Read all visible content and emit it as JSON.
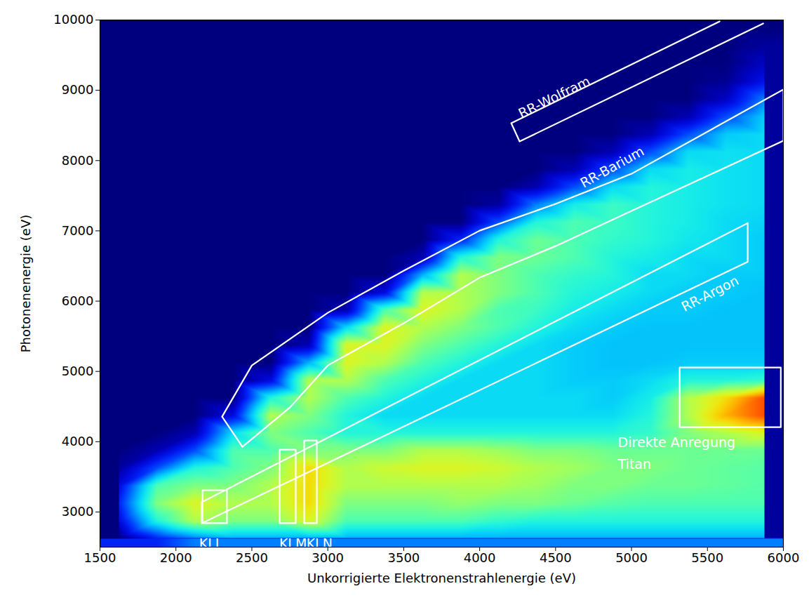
{
  "chart_data": {
    "type": "heatmap",
    "xlabel": "Unkorrigierte Elektronenstrahlenergie (eV)",
    "ylabel": "Photonenenergie (eV)",
    "xlim": [
      1500,
      6000
    ],
    "xticks": [
      1500,
      2000,
      2500,
      3000,
      3500,
      4000,
      4500,
      5000,
      5500,
      6000
    ],
    "ylim": [
      2500,
      10000
    ],
    "yticks": [
      3000,
      4000,
      5000,
      6000,
      7000,
      8000,
      9000,
      10000
    ],
    "x_bins": [
      1500,
      1750,
      2000,
      2250,
      2500,
      2750,
      3000,
      3250,
      3500,
      3750,
      4000,
      4250,
      4500,
      4750,
      5000,
      5250,
      5500,
      5750,
      6000
    ],
    "y_bins": [
      2500,
      2750,
      3000,
      3250,
      3500,
      3750,
      4000,
      4250,
      4500,
      4750,
      5000,
      5250,
      5500,
      5750,
      6000,
      6250,
      6500,
      6750,
      7000,
      7250,
      7500,
      7750,
      8000,
      8250,
      8500,
      8750,
      9000,
      9250,
      9500,
      9750,
      10000
    ],
    "zlim": [
      0,
      10
    ],
    "z": [
      [
        0,
        1,
        1.5,
        1,
        0.3,
        0,
        0,
        0,
        0,
        0,
        0,
        0,
        0,
        0,
        0,
        0,
        0,
        0,
        0,
        0,
        0,
        0,
        0,
        0,
        0,
        0,
        0,
        0,
        0,
        0
      ],
      [
        1.5,
        4,
        5,
        4.5,
        2,
        0.5,
        0,
        0,
        0,
        0,
        0,
        0,
        0,
        0,
        0,
        0,
        0,
        0,
        0,
        0,
        0,
        0,
        0,
        0,
        0,
        0,
        0,
        0,
        0,
        0
      ],
      [
        2.5,
        5.5,
        6,
        5,
        4,
        2,
        0.5,
        0,
        0,
        0,
        0,
        0,
        0,
        0,
        0,
        0,
        0,
        0,
        0,
        0,
        0,
        0,
        0,
        0,
        0,
        0,
        0,
        0,
        0,
        0
      ],
      [
        3,
        5,
        5.5,
        5,
        4.5,
        4.5,
        3.5,
        1,
        0,
        0,
        0,
        0,
        0,
        0,
        0,
        0,
        0,
        0,
        0,
        0,
        0,
        0,
        0,
        0,
        0,
        0,
        0,
        0,
        0,
        0
      ],
      [
        3,
        5,
        5.5,
        5.5,
        5,
        4.5,
        5,
        5.5,
        4,
        1,
        0,
        0,
        0,
        0,
        0,
        0,
        0,
        0,
        0,
        0,
        0,
        0,
        0,
        0,
        0,
        0,
        0,
        0,
        0,
        0
      ],
      [
        3,
        6,
        6.5,
        6.5,
        6.5,
        5,
        4.5,
        5,
        5.5,
        5.5,
        3,
        0.5,
        0,
        0,
        0,
        0,
        0,
        0,
        0,
        0,
        0,
        0,
        0,
        0,
        0,
        0,
        0,
        0,
        0,
        0
      ],
      [
        3,
        4.5,
        5,
        5.5,
        5.5,
        5,
        4,
        4,
        4.5,
        5.5,
        6,
        6,
        3.5,
        0.5,
        0,
        0,
        0,
        0,
        0,
        0,
        0,
        0,
        0,
        0,
        0,
        0,
        0,
        0,
        0,
        0
      ],
      [
        3,
        4.5,
        5,
        5.5,
        5.8,
        5,
        4,
        3.5,
        4,
        4.5,
        5.5,
        6,
        6,
        4.5,
        1,
        0,
        0,
        0,
        0,
        0,
        0,
        0,
        0,
        0,
        0,
        0,
        0,
        0,
        0,
        0
      ],
      [
        3,
        4.5,
        5,
        5.5,
        6,
        5.5,
        4,
        3.5,
        3.5,
        4,
        4.5,
        5,
        5.5,
        6,
        5.5,
        3,
        0.5,
        0,
        0,
        0,
        0,
        0,
        0,
        0,
        0,
        0,
        0,
        0,
        0,
        0
      ],
      [
        3,
        4.5,
        5.2,
        5.5,
        6,
        5.5,
        4,
        3.5,
        3.5,
        3.5,
        4,
        4.5,
        5,
        5.5,
        5.5,
        5.5,
        4,
        1.5,
        0,
        0,
        0,
        0,
        0,
        0,
        0,
        0,
        0,
        0,
        0,
        0
      ],
      [
        3,
        4.2,
        5,
        5.5,
        5.8,
        5.3,
        4,
        3.5,
        3.5,
        3.5,
        3.5,
        4,
        4.5,
        4.5,
        5,
        5,
        5,
        4,
        2,
        0.3,
        0,
        0,
        0,
        0,
        0,
        0,
        0,
        0,
        0,
        0
      ],
      [
        3,
        4,
        5,
        5.3,
        5.5,
        5,
        4,
        3.5,
        3.5,
        3.5,
        3.5,
        3.5,
        4,
        4.3,
        4.5,
        4.5,
        4.8,
        4.8,
        4,
        2.5,
        0.5,
        0,
        0,
        0,
        0,
        0,
        0,
        0,
        0,
        0
      ],
      [
        3,
        4,
        4.8,
        5,
        5.3,
        5,
        4,
        3.5,
        3.5,
        3.3,
        3.3,
        3.3,
        3.5,
        3.8,
        4,
        4.2,
        4.5,
        4.5,
        4.5,
        3.8,
        2,
        0.5,
        0,
        0,
        0,
        0,
        0,
        0,
        0,
        0
      ],
      [
        3,
        4,
        4.6,
        5,
        5,
        4.8,
        4,
        3.5,
        3.3,
        3.3,
        3.2,
        3.2,
        3.3,
        3.5,
        3.8,
        4,
        4,
        4.2,
        4.3,
        4.3,
        3.5,
        2,
        0.5,
        0,
        0,
        0,
        0,
        0,
        0,
        0
      ],
      [
        3,
        4,
        4.5,
        4.8,
        5,
        4.8,
        4.2,
        4,
        3.8,
        3.5,
        3.2,
        3.2,
        3.2,
        3.3,
        3.5,
        3.5,
        3.8,
        4,
        4,
        4,
        4,
        3.5,
        2,
        0.5,
        0,
        0,
        0,
        0,
        0,
        0
      ],
      [
        3,
        4,
        4.5,
        4.8,
        4.8,
        4.8,
        5,
        5.5,
        5.5,
        4,
        3.3,
        3.2,
        3.2,
        3.3,
        3.3,
        3.5,
        3.5,
        3.7,
        3.8,
        3.8,
        3.8,
        3.8,
        3.5,
        2,
        0.5,
        0,
        0,
        0,
        0,
        0
      ],
      [
        3,
        4,
        4.5,
        4.7,
        4.7,
        4.8,
        5.5,
        7,
        6.5,
        4,
        3.3,
        3.2,
        3.2,
        3.2,
        3.3,
        3.3,
        3.5,
        3.5,
        3.5,
        3.6,
        3.6,
        3.6,
        3.6,
        3.3,
        2,
        0.7,
        0.2,
        0,
        0,
        0
      ],
      [
        3,
        4,
        4.5,
        4.6,
        4.6,
        4.8,
        6,
        8,
        8,
        4.2,
        3.3,
        3.2,
        3.2,
        3.2,
        3.2,
        3.3,
        3.3,
        3.3,
        3.4,
        3.5,
        3.5,
        3.5,
        3.5,
        3.5,
        3.3,
        2.5,
        1.2,
        0.7,
        0.3,
        0
      ]
    ],
    "annotations": [
      {
        "label": "RR-Wolfram",
        "path": [
          [
            5580,
            9980
          ],
          [
            4208,
            8532
          ],
          [
            4263,
            8272
          ],
          [
            5867,
            9950
          ]
        ],
        "label_at": [
          4485,
          8930
        ]
      },
      {
        "label": "RR-Barium",
        "polygon": [
          [
            6000,
            9011
          ],
          [
            5000,
            7812
          ],
          [
            4500,
            7383
          ],
          [
            4000,
            7003
          ],
          [
            3500,
            6433
          ],
          [
            3000,
            5834
          ],
          [
            2500,
            5085
          ],
          [
            2304,
            4356
          ],
          [
            2438,
            3926
          ],
          [
            2750,
            4486
          ],
          [
            3000,
            5085
          ],
          [
            3500,
            5685
          ],
          [
            4000,
            6334
          ],
          [
            4500,
            6783
          ],
          [
            5000,
            7283
          ],
          [
            6000,
            8282
          ]
        ],
        "label_at": [
          4865,
          7935
        ]
      },
      {
        "label": "RR-Argon",
        "polygon": [
          [
            5765,
            7110
          ],
          [
            2170,
            3140
          ],
          [
            2170,
            2840
          ],
          [
            5765,
            6560
          ]
        ],
        "label_at": [
          5510,
          6135
        ]
      },
      {
        "label": "KLL",
        "box": {
          "x": [
            2175,
            2336
          ],
          "y": [
            2840,
            3310
          ]
        },
        "label_at": [
          2230,
          2700
        ]
      },
      {
        "label": "KLM",
        "box": {
          "x": [
            2683,
            2789
          ],
          "y": [
            2840,
            3886
          ]
        },
        "label_at": [
          2680,
          2700
        ]
      },
      {
        "label": "KLN",
        "box": {
          "x": [
            2845,
            2928
          ],
          "y": [
            2840,
            4016
          ]
        },
        "label_at": [
          2945,
          2700
        ]
      },
      {
        "label": "Direkte Anregung\nTitan",
        "box": {
          "x": [
            5317,
            5983
          ],
          "y": [
            4206,
            5055
          ]
        },
        "label_at": [
          4910,
          4135
        ]
      }
    ]
  }
}
